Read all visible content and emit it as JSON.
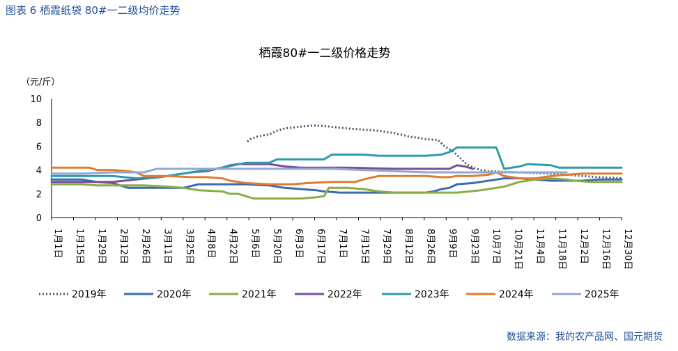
{
  "figure_caption": "图表 6 栖霞纸袋 80#一二级均价走势",
  "source": "数据来源：我的农产品网、国元期货",
  "chart_data": {
    "type": "line",
    "title": "栖霞80#一二级价格走势",
    "ylabel": "（元/斤）",
    "xlabel": "",
    "ylim": [
      0,
      10
    ],
    "yticks": [
      "0",
      "2",
      "4",
      "6",
      "8",
      "10"
    ],
    "x_range_days": [
      1,
      365
    ],
    "categories": [
      "1月1日",
      "1月15日",
      "1月29日",
      "2月12日",
      "2月26日",
      "3月11日",
      "3月25日",
      "4月8日",
      "4月22日",
      "5月6日",
      "5月20日",
      "6月3日",
      "6月17日",
      "7月1日",
      "7月15日",
      "7月29日",
      "8月12日",
      "8月26日",
      "9月9日",
      "9月23日",
      "10月7日",
      "10月21日",
      "11月4日",
      "11月18日",
      "12月2日",
      "12月16日",
      "12月30日"
    ],
    "series": [
      {
        "name": "2019年",
        "color": "#44546a",
        "dash": "dot",
        "points": [
          [
            126,
            6.4
          ],
          [
            128,
            6.6
          ],
          [
            132,
            6.8
          ],
          [
            140,
            7.0
          ],
          [
            145,
            7.3
          ],
          [
            150,
            7.5
          ],
          [
            160,
            7.65
          ],
          [
            168,
            7.75
          ],
          [
            175,
            7.7
          ],
          [
            182,
            7.6
          ],
          [
            190,
            7.5
          ],
          [
            200,
            7.4
          ],
          [
            210,
            7.3
          ],
          [
            220,
            7.1
          ],
          [
            230,
            6.8
          ],
          [
            240,
            6.6
          ],
          [
            248,
            6.5
          ],
          [
            252,
            6.0
          ],
          [
            258,
            5.5
          ],
          [
            262,
            5.0
          ],
          [
            266,
            4.5
          ],
          [
            270,
            4.2
          ],
          [
            275,
            4.0
          ],
          [
            280,
            3.9
          ],
          [
            290,
            3.85
          ],
          [
            300,
            3.8
          ],
          [
            310,
            3.75
          ],
          [
            320,
            3.7
          ],
          [
            330,
            3.6
          ],
          [
            340,
            3.5
          ],
          [
            350,
            3.4
          ],
          [
            360,
            3.35
          ],
          [
            365,
            3.3
          ]
        ]
      },
      {
        "name": "2020年",
        "color": "#3a6ab0",
        "dash": "",
        "points": [
          [
            1,
            3.2
          ],
          [
            20,
            3.2
          ],
          [
            30,
            3.0
          ],
          [
            40,
            2.9
          ],
          [
            50,
            2.5
          ],
          [
            70,
            2.5
          ],
          [
            85,
            2.5
          ],
          [
            95,
            2.8
          ],
          [
            110,
            2.8
          ],
          [
            125,
            2.8
          ],
          [
            140,
            2.7
          ],
          [
            150,
            2.5
          ],
          [
            160,
            2.4
          ],
          [
            170,
            2.3
          ],
          [
            175,
            2.2
          ],
          [
            185,
            2.1
          ],
          [
            195,
            2.1
          ],
          [
            205,
            2.1
          ],
          [
            215,
            2.1
          ],
          [
            225,
            2.1
          ],
          [
            240,
            2.1
          ],
          [
            245,
            2.2
          ],
          [
            250,
            2.4
          ],
          [
            255,
            2.5
          ],
          [
            260,
            2.8
          ],
          [
            270,
            2.9
          ],
          [
            275,
            3.0
          ],
          [
            285,
            3.2
          ],
          [
            290,
            3.3
          ],
          [
            300,
            3.3
          ],
          [
            310,
            3.2
          ],
          [
            320,
            3.1
          ],
          [
            330,
            3.1
          ],
          [
            340,
            3.1
          ],
          [
            350,
            3.2
          ],
          [
            360,
            3.2
          ],
          [
            365,
            3.2
          ]
        ]
      },
      {
        "name": "2021年",
        "color": "#8aab46",
        "dash": "",
        "points": [
          [
            1,
            2.8
          ],
          [
            10,
            2.8
          ],
          [
            20,
            2.8
          ],
          [
            30,
            2.7
          ],
          [
            40,
            2.7
          ],
          [
            50,
            2.7
          ],
          [
            60,
            2.7
          ],
          [
            75,
            2.6
          ],
          [
            85,
            2.5
          ],
          [
            95,
            2.3
          ],
          [
            110,
            2.2
          ],
          [
            115,
            2.0
          ],
          [
            120,
            2.0
          ],
          [
            125,
            1.8
          ],
          [
            130,
            1.6
          ],
          [
            140,
            1.6
          ],
          [
            150,
            1.6
          ],
          [
            160,
            1.6
          ],
          [
            165,
            1.65
          ],
          [
            170,
            1.7
          ],
          [
            175,
            1.8
          ],
          [
            178,
            2.5
          ],
          [
            190,
            2.5
          ],
          [
            200,
            2.4
          ],
          [
            210,
            2.2
          ],
          [
            220,
            2.1
          ],
          [
            230,
            2.1
          ],
          [
            240,
            2.1
          ],
          [
            250,
            2.1
          ],
          [
            260,
            2.1
          ],
          [
            268,
            2.2
          ],
          [
            275,
            2.3
          ],
          [
            285,
            2.5
          ],
          [
            290,
            2.6
          ],
          [
            295,
            2.8
          ],
          [
            300,
            3.0
          ],
          [
            310,
            3.2
          ],
          [
            320,
            3.3
          ],
          [
            330,
            3.2
          ],
          [
            335,
            3.1
          ],
          [
            345,
            3.0
          ],
          [
            355,
            3.0
          ],
          [
            365,
            3.0
          ]
        ]
      },
      {
        "name": "2022年",
        "color": "#7a4f96",
        "dash": "",
        "points": [
          [
            1,
            3.0
          ],
          [
            20,
            3.0
          ],
          [
            40,
            3.0
          ],
          [
            55,
            3.2
          ],
          [
            70,
            3.4
          ],
          [
            80,
            3.6
          ],
          [
            90,
            3.8
          ],
          [
            100,
            3.9
          ],
          [
            110,
            4.2
          ],
          [
            115,
            4.4
          ],
          [
            120,
            4.5
          ],
          [
            130,
            4.5
          ],
          [
            140,
            4.5
          ],
          [
            150,
            4.3
          ],
          [
            160,
            4.2
          ],
          [
            175,
            4.2
          ],
          [
            190,
            4.2
          ],
          [
            205,
            4.15
          ],
          [
            220,
            4.1
          ],
          [
            240,
            4.1
          ],
          [
            255,
            4.1
          ],
          [
            260,
            4.4
          ],
          [
            265,
            4.3
          ],
          [
            270,
            4.1
          ]
        ]
      },
      {
        "name": "2023年",
        "color": "#2e9ca8",
        "dash": "",
        "points": [
          [
            1,
            3.5
          ],
          [
            20,
            3.5
          ],
          [
            40,
            3.5
          ],
          [
            55,
            3.3
          ],
          [
            70,
            3.4
          ],
          [
            80,
            3.6
          ],
          [
            90,
            3.8
          ],
          [
            100,
            4.0
          ],
          [
            110,
            4.2
          ],
          [
            125,
            4.6
          ],
          [
            140,
            4.6
          ],
          [
            145,
            4.9
          ],
          [
            160,
            4.9
          ],
          [
            175,
            4.9
          ],
          [
            180,
            5.3
          ],
          [
            200,
            5.3
          ],
          [
            210,
            5.2
          ],
          [
            225,
            5.2
          ],
          [
            240,
            5.2
          ],
          [
            250,
            5.3
          ],
          [
            255,
            5.5
          ],
          [
            260,
            5.9
          ],
          [
            275,
            5.9
          ],
          [
            285,
            5.9
          ],
          [
            290,
            4.1
          ],
          [
            300,
            4.3
          ],
          [
            305,
            4.5
          ],
          [
            320,
            4.4
          ],
          [
            325,
            4.2
          ],
          [
            340,
            4.2
          ],
          [
            355,
            4.2
          ],
          [
            365,
            4.2
          ]
        ]
      },
      {
        "name": "2024年",
        "color": "#e27b2f",
        "dash": "",
        "points": [
          [
            1,
            4.2
          ],
          [
            10,
            4.2
          ],
          [
            25,
            4.2
          ],
          [
            30,
            4.0
          ],
          [
            40,
            4.0
          ],
          [
            50,
            3.9
          ],
          [
            55,
            3.8
          ],
          [
            60,
            3.5
          ],
          [
            75,
            3.5
          ],
          [
            90,
            3.4
          ],
          [
            100,
            3.4
          ],
          [
            110,
            3.3
          ],
          [
            115,
            3.1
          ],
          [
            125,
            2.9
          ],
          [
            140,
            2.8
          ],
          [
            155,
            2.8
          ],
          [
            165,
            2.9
          ],
          [
            180,
            3.0
          ],
          [
            195,
            3.0
          ],
          [
            200,
            3.2
          ],
          [
            210,
            3.5
          ],
          [
            220,
            3.5
          ],
          [
            240,
            3.5
          ],
          [
            250,
            3.4
          ],
          [
            255,
            3.4
          ],
          [
            260,
            3.5
          ],
          [
            270,
            3.5
          ],
          [
            280,
            3.6
          ],
          [
            285,
            3.8
          ],
          [
            290,
            3.5
          ],
          [
            300,
            3.3
          ],
          [
            310,
            3.3
          ],
          [
            320,
            3.5
          ],
          [
            330,
            3.6
          ],
          [
            340,
            3.7
          ],
          [
            350,
            3.7
          ],
          [
            365,
            3.7
          ]
        ]
      },
      {
        "name": "2025年",
        "color": "#8fa9d3",
        "dash": "",
        "points": [
          [
            1,
            3.7
          ],
          [
            20,
            3.7
          ],
          [
            40,
            3.8
          ],
          [
            60,
            3.8
          ],
          [
            68,
            4.1
          ],
          [
            80,
            4.1
          ],
          [
            100,
            4.1
          ],
          [
            120,
            4.1
          ],
          [
            140,
            4.1
          ],
          [
            160,
            4.1
          ],
          [
            180,
            4.1
          ],
          [
            200,
            4.0
          ],
          [
            220,
            3.9
          ],
          [
            240,
            3.8
          ],
          [
            260,
            3.8
          ],
          [
            280,
            3.8
          ],
          [
            300,
            3.8
          ],
          [
            320,
            3.8
          ],
          [
            330,
            3.8
          ]
        ]
      }
    ]
  }
}
